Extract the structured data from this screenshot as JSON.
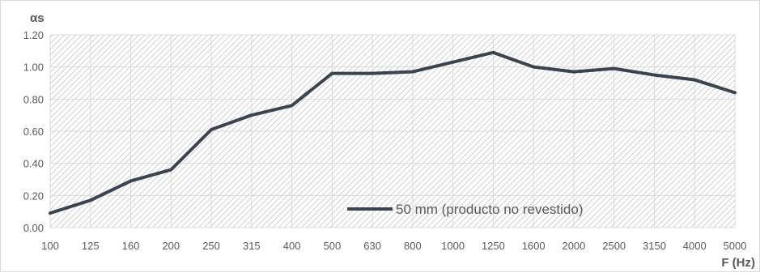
{
  "chart_data": {
    "type": "line",
    "ylabel": "αs",
    "xlabel": "F (Hz)",
    "categories": [
      "100",
      "125",
      "160",
      "200",
      "250",
      "315",
      "400",
      "500",
      "630",
      "800",
      "1000",
      "1250",
      "1600",
      "2000",
      "2500",
      "3150",
      "4000",
      "5000"
    ],
    "series": [
      {
        "name": "50 mm (producto no revestido)",
        "color": "#3b4350",
        "values": [
          0.09,
          0.17,
          0.29,
          0.36,
          0.61,
          0.7,
          0.76,
          0.96,
          0.96,
          0.97,
          1.03,
          1.09,
          1.0,
          0.97,
          0.99,
          0.95,
          0.92,
          0.84
        ]
      }
    ],
    "yticks": [
      "0.00",
      "0.20",
      "0.40",
      "0.60",
      "0.80",
      "1.00",
      "1.20"
    ],
    "ylim": [
      0,
      1.2
    ],
    "grid": true,
    "legend_position": "inside-bottom-right",
    "colors": {
      "line": "#3b4350",
      "axis_text": "#595959",
      "hatch": "#d0d0d0"
    }
  }
}
